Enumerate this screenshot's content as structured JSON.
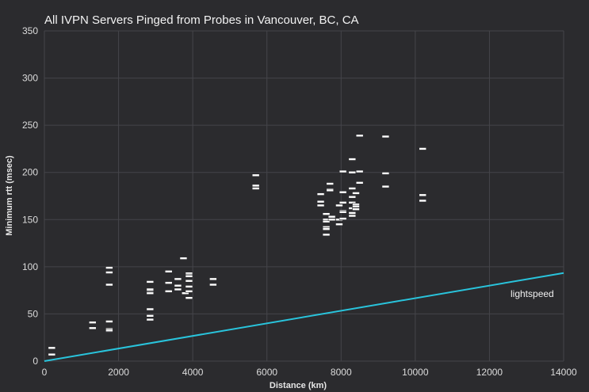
{
  "chart_data": {
    "type": "scatter",
    "title": "All IVPN Servers Pinged from Probes in Vancouver, BC, CA",
    "xlabel": "Distance (km)",
    "ylabel": "Minimum rtt (msec)",
    "xlim": [
      0,
      14000
    ],
    "ylim": [
      0,
      350
    ],
    "x_ticks": [
      0,
      2000,
      4000,
      6000,
      8000,
      10000,
      12000,
      14000
    ],
    "y_ticks": [
      0,
      50,
      100,
      150,
      200,
      250,
      300,
      350
    ],
    "grid": true,
    "marker_color": "#ffffff",
    "line_color": "#29c4dc",
    "series": [
      {
        "x": [
          200,
          200,
          1300,
          1300,
          1750,
          1750,
          1750,
          1750,
          1750,
          1750,
          1750,
          2850,
          2850,
          2850,
          2850,
          2850,
          2850,
          2850,
          3350,
          3350,
          3350,
          3600,
          3600,
          3600,
          3750,
          3800,
          3900,
          3900,
          3900,
          3900,
          3900,
          3900,
          3900,
          4550,
          4550,
          5700,
          5700,
          5700,
          7450,
          7450,
          7450,
          7600,
          7600,
          7600,
          7600,
          7600,
          7600,
          7700,
          7700,
          7700,
          7750,
          7750,
          7950,
          7950,
          7950,
          8050,
          8050,
          8050,
          8050,
          8050,
          8050,
          8300,
          8300,
          8300,
          8300,
          8300,
          8300,
          8300,
          8300,
          8400,
          8400,
          8400,
          8400,
          8500,
          8500,
          8500,
          9200,
          9200,
          9200,
          10200,
          10200,
          10200
        ],
        "y": [
          14,
          7,
          41,
          35,
          42,
          34,
          32,
          99,
          94,
          81,
          33,
          84,
          75,
          72,
          55,
          48,
          44,
          76,
          95,
          83,
          74,
          87,
          80,
          76,
          109,
          72,
          93,
          91,
          90,
          85,
          79,
          74,
          67,
          87,
          81,
          197,
          186,
          183,
          177,
          169,
          165,
          156,
          150,
          148,
          142,
          140,
          134,
          188,
          182,
          181,
          153,
          150,
          165,
          150,
          145,
          201,
          179,
          168,
          159,
          158,
          151,
          214,
          200,
          183,
          174,
          168,
          162,
          157,
          154,
          178,
          166,
          164,
          161,
          239,
          201,
          189,
          238,
          199,
          185,
          225,
          176,
          170
        ]
      },
      {
        "name": "lightspeed",
        "type": "line",
        "x": [
          0,
          14000
        ],
        "y": [
          0,
          93.4
        ]
      }
    ]
  }
}
